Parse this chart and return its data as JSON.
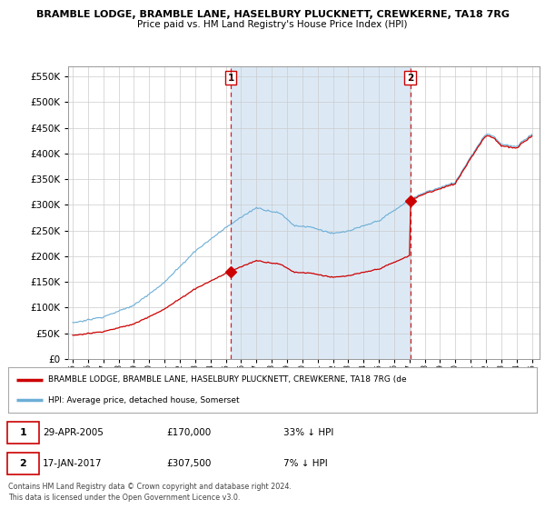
{
  "title": "BRAMBLE LODGE, BRAMBLE LANE, HASELBURY PLUCKNETT, CREWKERNE, TA18 7RG",
  "subtitle": "Price paid vs. HM Land Registry's House Price Index (HPI)",
  "ylim": [
    0,
    570000
  ],
  "yticks": [
    0,
    50000,
    100000,
    150000,
    200000,
    250000,
    300000,
    350000,
    400000,
    450000,
    500000,
    550000
  ],
  "xlim_start": 1994.7,
  "xlim_end": 2025.5,
  "hpi_color": "#6baed6",
  "hpi_fill_color": "#dce9f5",
  "price_color": "#cc0000",
  "vline_color": "#cc0000",
  "sale1_x": 2005.32,
  "sale1_y": 170000,
  "sale2_x": 2017.05,
  "sale2_y": 307500,
  "legend_label_price": "BRAMBLE LODGE, BRAMBLE LANE, HASELBURY PLUCKNETT, CREWKERNE, TA18 7RG (de",
  "legend_label_hpi": "HPI: Average price, detached house, Somerset",
  "footer_line1": "Contains HM Land Registry data © Crown copyright and database right 2024.",
  "footer_line2": "This data is licensed under the Open Government Licence v3.0.",
  "background_color": "#ffffff",
  "grid_color": "#cccccc"
}
